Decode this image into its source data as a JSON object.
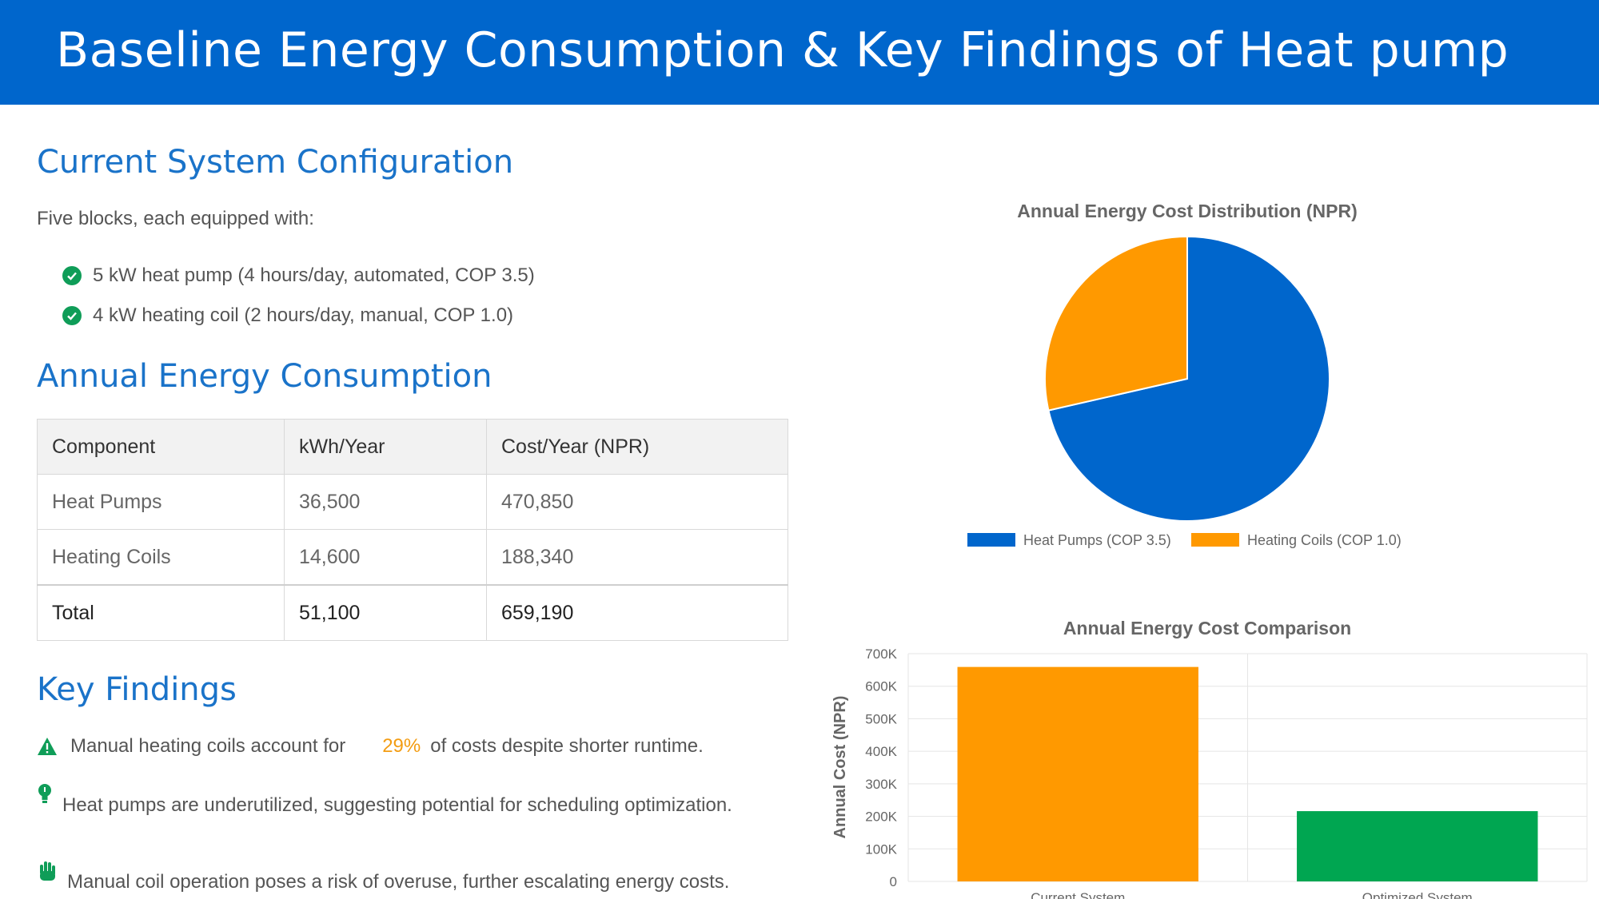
{
  "header": {
    "title": "Baseline Energy Consumption & Key Findings of Heat pump"
  },
  "config": {
    "title": "Current System Configuration",
    "intro": "Five blocks, each equipped with:",
    "items": [
      {
        "text": "5 kW heat pump (4 hours/day, automated, COP 3.5)",
        "icon": "check-circle-icon"
      },
      {
        "text": "4 kW heating coil (2 hours/day, manual, COP 1.0)",
        "icon": "check-circle-icon"
      }
    ]
  },
  "consumption": {
    "title": "Annual Energy Consumption",
    "headers": [
      "Component",
      "kWh/Year",
      "Cost/Year (NPR)"
    ],
    "rows": [
      [
        "Heat Pumps",
        "36,500",
        "470,850"
      ],
      [
        "Heating Coils",
        "14,600",
        "188,340"
      ]
    ],
    "total": [
      "Total",
      "51,100",
      "659,190"
    ]
  },
  "findings": {
    "title": "Key Findings",
    "items": [
      {
        "icon": "warning-icon",
        "pre": "Manual heating coils account for",
        "accent": "29%",
        "post": "of costs despite shorter runtime."
      },
      {
        "icon": "lightbulb-icon",
        "text": "Heat pumps are underutilized, suggesting potential for scheduling optimization."
      },
      {
        "icon": "hand-icon",
        "text": "Manual coil operation poses a risk of overuse, further escalating energy costs."
      }
    ]
  },
  "colors": {
    "header": "#0066cc",
    "title": "#1a73c9",
    "orange": "#ff9900",
    "blue": "#0066cc",
    "green": "#00a651"
  },
  "chart_data": [
    {
      "type": "pie",
      "title": "Annual Energy Cost Distribution (NPR)",
      "categories": [
        "Heat Pumps (COP 3.5)",
        "Heating Coils (COP 1.0)"
      ],
      "values": [
        470850,
        188340
      ],
      "colors": [
        "#0066cc",
        "#ff9900"
      ],
      "legend": "bottom"
    },
    {
      "type": "bar",
      "title": "Annual Energy Cost Comparison",
      "ylabel": "Annual Cost (NPR)",
      "categories": [
        "Current System",
        "Optimized System"
      ],
      "values": [
        659190,
        216000
      ],
      "colors": [
        "#ff9900",
        "#00a651"
      ],
      "ylim": [
        0,
        700000
      ],
      "yticks": [
        "0",
        "100K",
        "200K",
        "300K",
        "400K",
        "500K",
        "600K",
        "700K"
      ],
      "grid": true
    }
  ]
}
